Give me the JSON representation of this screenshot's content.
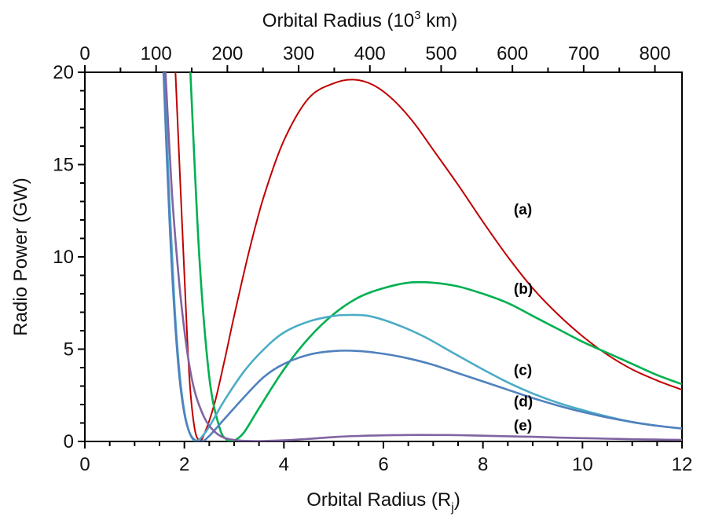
{
  "chart_data": {
    "type": "line",
    "title": "",
    "xlabel": "Orbital Radius (R",
    "xlabel_sub": "j",
    "xlabel_end": ")",
    "ylabel": "Radio Power (GW)",
    "x2label_pre": "Orbital Radius (10",
    "x2label_sup": "3",
    "x2label_post": " km)",
    "xlim": [
      0,
      12
    ],
    "ylim": [
      0,
      20
    ],
    "x2lim": [
      0,
      838
    ],
    "x_ticks": [
      0,
      2,
      4,
      6,
      8,
      10,
      12
    ],
    "y_ticks": [
      0,
      5,
      10,
      15,
      20
    ],
    "x2_ticks": [
      0,
      100,
      200,
      300,
      400,
      500,
      600,
      700,
      800
    ],
    "grid": false,
    "series": [
      {
        "name": "(a)",
        "color": "#c00000",
        "points": [
          [
            1.82,
            20.0
          ],
          [
            2.0,
            9.0
          ],
          [
            2.1,
            3.5
          ],
          [
            2.2,
            0.8
          ],
          [
            2.3,
            0.05
          ],
          [
            2.4,
            0.4
          ],
          [
            2.6,
            2.0
          ],
          [
            2.8,
            4.3
          ],
          [
            3.0,
            6.8
          ],
          [
            3.3,
            10.3
          ],
          [
            3.6,
            13.3
          ],
          [
            4.0,
            16.3
          ],
          [
            4.5,
            18.6
          ],
          [
            5.0,
            19.4
          ],
          [
            5.4,
            19.6
          ],
          [
            5.8,
            19.3
          ],
          [
            6.2,
            18.5
          ],
          [
            6.6,
            17.3
          ],
          [
            7.0,
            15.8
          ],
          [
            7.5,
            13.9
          ],
          [
            8.0,
            11.9
          ],
          [
            8.5,
            10.0
          ],
          [
            9.0,
            8.3
          ],
          [
            9.5,
            6.9
          ],
          [
            10.0,
            5.7
          ],
          [
            10.5,
            4.7
          ],
          [
            11.0,
            3.9
          ],
          [
            11.5,
            3.3
          ],
          [
            12.0,
            2.8
          ]
        ]
      },
      {
        "name": "(b)",
        "color": "#00b050",
        "points": [
          [
            2.12,
            20.0
          ],
          [
            2.3,
            10.0
          ],
          [
            2.5,
            3.5
          ],
          [
            2.7,
            0.8
          ],
          [
            2.85,
            0.1
          ],
          [
            3.0,
            0.05
          ],
          [
            3.2,
            0.5
          ],
          [
            3.5,
            1.8
          ],
          [
            4.0,
            3.9
          ],
          [
            4.5,
            5.6
          ],
          [
            5.0,
            6.9
          ],
          [
            5.5,
            7.8
          ],
          [
            6.0,
            8.3
          ],
          [
            6.5,
            8.6
          ],
          [
            7.0,
            8.6
          ],
          [
            7.5,
            8.4
          ],
          [
            8.0,
            8.0
          ],
          [
            8.5,
            7.5
          ],
          [
            9.0,
            6.8
          ],
          [
            9.5,
            6.1
          ],
          [
            10.0,
            5.4
          ],
          [
            10.5,
            4.8
          ],
          [
            11.0,
            4.2
          ],
          [
            11.5,
            3.6
          ],
          [
            12.0,
            3.1
          ]
        ]
      },
      {
        "name": "(c)",
        "color": "#4bacc6",
        "points": [
          [
            1.6,
            20.0
          ],
          [
            1.7,
            13.0
          ],
          [
            1.8,
            7.5
          ],
          [
            1.9,
            3.8
          ],
          [
            2.0,
            1.6
          ],
          [
            2.1,
            0.5
          ],
          [
            2.2,
            0.05
          ],
          [
            2.3,
            0.1
          ],
          [
            2.5,
            0.8
          ],
          [
            2.8,
            2.2
          ],
          [
            3.2,
            3.8
          ],
          [
            3.6,
            5.0
          ],
          [
            4.0,
            5.9
          ],
          [
            4.5,
            6.5
          ],
          [
            5.0,
            6.8
          ],
          [
            5.3,
            6.85
          ],
          [
            5.7,
            6.8
          ],
          [
            6.2,
            6.4
          ],
          [
            6.8,
            5.7
          ],
          [
            7.4,
            4.8
          ],
          [
            8.0,
            3.9
          ],
          [
            8.5,
            3.2
          ],
          [
            9.0,
            2.6
          ],
          [
            9.5,
            2.1
          ],
          [
            10.0,
            1.7
          ],
          [
            10.5,
            1.35
          ],
          [
            11.0,
            1.05
          ],
          [
            11.5,
            0.85
          ],
          [
            12.0,
            0.7
          ]
        ]
      },
      {
        "name": "(d)",
        "color": "#4f81bd",
        "points": [
          [
            1.58,
            20.0
          ],
          [
            1.7,
            12.0
          ],
          [
            1.8,
            7.0
          ],
          [
            1.9,
            3.5
          ],
          [
            2.0,
            1.5
          ],
          [
            2.1,
            0.5
          ],
          [
            2.2,
            0.1
          ],
          [
            2.35,
            0.0
          ],
          [
            2.5,
            0.3
          ],
          [
            2.8,
            1.2
          ],
          [
            3.2,
            2.4
          ],
          [
            3.6,
            3.5
          ],
          [
            4.0,
            4.2
          ],
          [
            4.5,
            4.7
          ],
          [
            5.0,
            4.9
          ],
          [
            5.5,
            4.9
          ],
          [
            6.0,
            4.75
          ],
          [
            6.5,
            4.5
          ],
          [
            7.0,
            4.15
          ],
          [
            7.5,
            3.7
          ],
          [
            8.0,
            3.25
          ],
          [
            8.5,
            2.8
          ],
          [
            9.0,
            2.35
          ],
          [
            9.5,
            1.95
          ],
          [
            10.0,
            1.6
          ],
          [
            10.5,
            1.3
          ],
          [
            11.0,
            1.05
          ],
          [
            11.5,
            0.85
          ],
          [
            12.0,
            0.7
          ]
        ]
      },
      {
        "name": "(e)",
        "color": "#8064a2",
        "points": [
          [
            1.62,
            20.0
          ],
          [
            1.75,
            13.5
          ],
          [
            1.9,
            8.5
          ],
          [
            2.05,
            5.0
          ],
          [
            2.2,
            2.8
          ],
          [
            2.4,
            1.3
          ],
          [
            2.6,
            0.55
          ],
          [
            2.8,
            0.2
          ],
          [
            3.1,
            0.05
          ],
          [
            3.5,
            0.02
          ],
          [
            4.0,
            0.06
          ],
          [
            4.5,
            0.14
          ],
          [
            5.0,
            0.24
          ],
          [
            5.5,
            0.3
          ],
          [
            6.0,
            0.33
          ],
          [
            6.5,
            0.35
          ],
          [
            7.0,
            0.35
          ],
          [
            7.5,
            0.34
          ],
          [
            8.0,
            0.31
          ],
          [
            8.5,
            0.28
          ],
          [
            9.0,
            0.25
          ],
          [
            9.5,
            0.21
          ],
          [
            10.0,
            0.18
          ],
          [
            10.5,
            0.15
          ],
          [
            11.0,
            0.12
          ],
          [
            11.5,
            0.1
          ],
          [
            12.0,
            0.08
          ]
        ]
      }
    ],
    "annotations": [
      {
        "label": "(a)",
        "series": "(a)",
        "x": 8.62,
        "y": 12.3
      },
      {
        "label": "(b)",
        "series": "(b)",
        "x": 8.62,
        "y": 8.0
      },
      {
        "label": "(c)",
        "series": "(c)",
        "x": 8.62,
        "y": 3.6
      },
      {
        "label": "(d)",
        "series": "(d)",
        "x": 8.62,
        "y": 1.9
      },
      {
        "label": "(e)",
        "series": "(e)",
        "x": 8.62,
        "y": 0.6
      }
    ]
  }
}
